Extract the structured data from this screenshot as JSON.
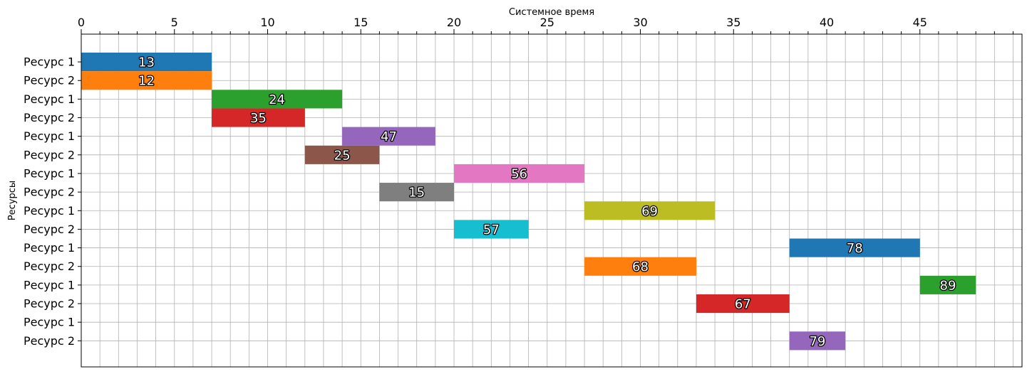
{
  "chart_data": {
    "type": "gantt",
    "xlabel": "Системное время",
    "ylabel": "Ресурсы",
    "xlim": [
      0,
      50
    ],
    "x_major_ticks": [
      0,
      5,
      10,
      15,
      20,
      25,
      30,
      35,
      40,
      45
    ],
    "x_minor_step": 1,
    "x_axis_position": "top",
    "grid": true,
    "rows": [
      "Ресурс 1",
      "Ресурс 2",
      "Ресурс 1",
      "Ресурс 2",
      "Ресурс 1",
      "Ресурс 2",
      "Ресурс 1",
      "Ресурс 2",
      "Ресурс 1",
      "Ресурс 2",
      "Ресурс 1",
      "Ресурс 2",
      "Ресурс 1",
      "Ресурс 2",
      "Ресурс 1",
      "Ресурс 2"
    ],
    "tasks": [
      {
        "row": 0,
        "start": 0,
        "end": 7,
        "label": "13",
        "color": "#1f77b4"
      },
      {
        "row": 1,
        "start": 0,
        "end": 7,
        "label": "12",
        "color": "#ff7f0e"
      },
      {
        "row": 2,
        "start": 7,
        "end": 14,
        "label": "24",
        "color": "#2ca02c"
      },
      {
        "row": 3,
        "start": 7,
        "end": 12,
        "label": "35",
        "color": "#d62728"
      },
      {
        "row": 4,
        "start": 14,
        "end": 19,
        "label": "47",
        "color": "#9467bd"
      },
      {
        "row": 5,
        "start": 12,
        "end": 16,
        "label": "25",
        "color": "#8c564b"
      },
      {
        "row": 6,
        "start": 20,
        "end": 27,
        "label": "56",
        "color": "#e377c2"
      },
      {
        "row": 7,
        "start": 16,
        "end": 20,
        "label": "15",
        "color": "#7f7f7f"
      },
      {
        "row": 8,
        "start": 27,
        "end": 34,
        "label": "69",
        "color": "#bcbd22"
      },
      {
        "row": 9,
        "start": 20,
        "end": 24,
        "label": "57",
        "color": "#17becf"
      },
      {
        "row": 10,
        "start": 38,
        "end": 45,
        "label": "78",
        "color": "#1f77b4"
      },
      {
        "row": 11,
        "start": 27,
        "end": 33,
        "label": "68",
        "color": "#ff7f0e"
      },
      {
        "row": 12,
        "start": 45,
        "end": 48,
        "label": "89",
        "color": "#2ca02c"
      },
      {
        "row": 13,
        "start": 33,
        "end": 38,
        "label": "67",
        "color": "#d62728"
      },
      {
        "row": 15,
        "start": 38,
        "end": 41,
        "label": "79",
        "color": "#9467bd"
      }
    ]
  }
}
